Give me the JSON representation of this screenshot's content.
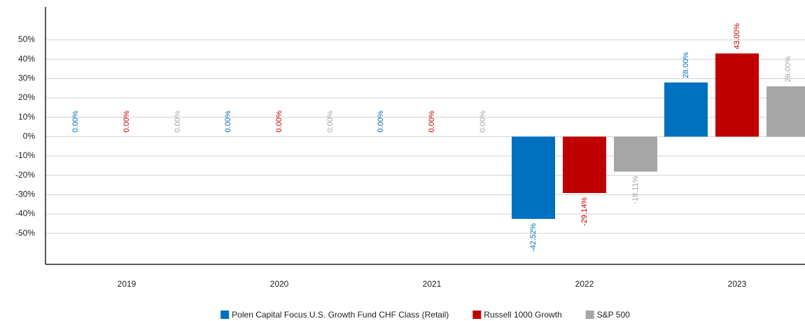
{
  "chart_data": {
    "type": "bar",
    "categories": [
      "2019",
      "2020",
      "2021",
      "2022",
      "2023"
    ],
    "series": [
      {
        "name": "Polen Capital Focus U.S. Growth Fund CHF Class (Retail)",
        "color": "#0070c0",
        "values": [
          0,
          0,
          0,
          -42.52,
          28
        ],
        "value_labels": [
          "0.00%",
          "0.00%",
          "0.00%",
          "-42.52%",
          "28.00%"
        ]
      },
      {
        "name": "Russell 1000 Growth",
        "color": "#c00000",
        "values": [
          0,
          0,
          0,
          -29.14,
          43
        ],
        "value_labels": [
          "0.00%",
          "0.00%",
          "0.00%",
          "-29.14%",
          "43.00%"
        ]
      },
      {
        "name": "S&P 500",
        "color": "#a6a6a6",
        "values": [
          0,
          0,
          0,
          -18.11,
          26
        ],
        "value_labels": [
          "0.00%",
          "0.00%",
          "0.00%",
          "-18.11%",
          "26.00%"
        ]
      }
    ],
    "ylim": [
      -66,
      67
    ],
    "yticks": [
      {
        "value": 50,
        "label": "50%"
      },
      {
        "value": 40,
        "label": "40%"
      },
      {
        "value": 30,
        "label": "30%"
      },
      {
        "value": 20,
        "label": "20%"
      },
      {
        "value": 10,
        "label": "10%"
      },
      {
        "value": 0,
        "label": "0%"
      },
      {
        "value": -10,
        "label": "-10%"
      },
      {
        "value": -20,
        "label": "-20%"
      },
      {
        "value": -30,
        "label": "-30%"
      },
      {
        "value": -40,
        "label": "-40%"
      },
      {
        "value": -50,
        "label": "-50%"
      }
    ],
    "grid": true,
    "legend": "bottom"
  }
}
